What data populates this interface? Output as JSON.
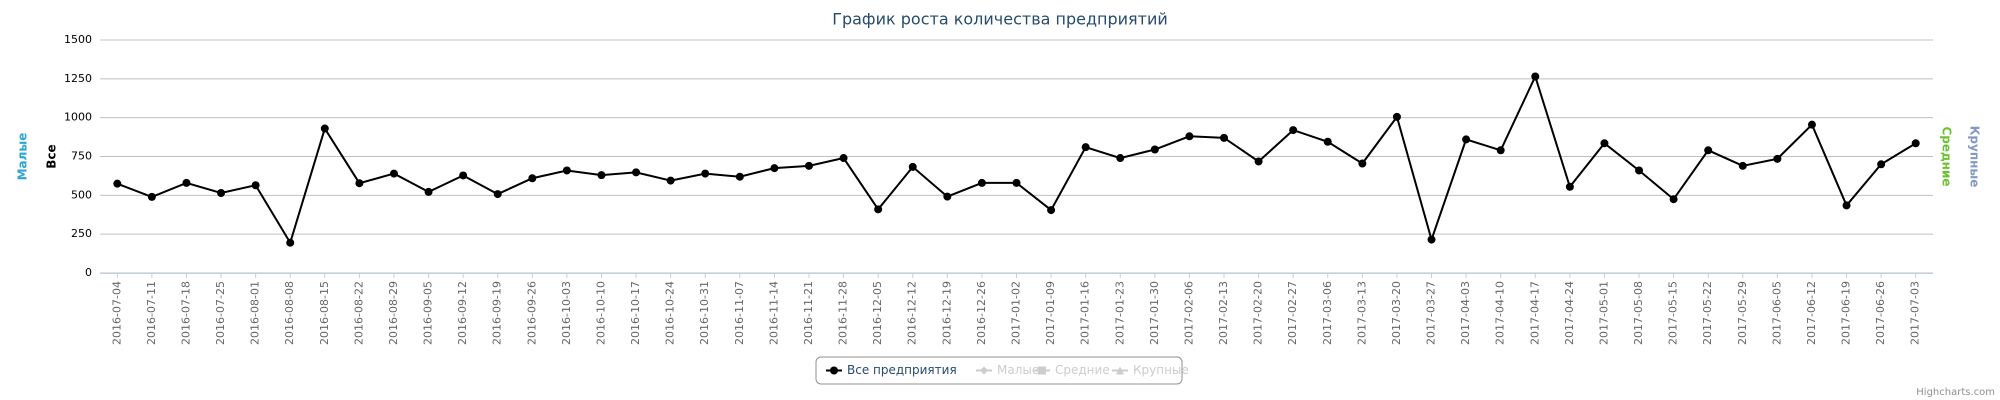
{
  "chart_data": {
    "type": "line",
    "title": "График роста количества предприятий",
    "categories": [
      "2016-07-04",
      "2016-07-11",
      "2016-07-18",
      "2016-07-25",
      "2016-08-01",
      "2016-08-08",
      "2016-08-15",
      "2016-08-22",
      "2016-08-29",
      "2016-09-05",
      "2016-09-12",
      "2016-09-19",
      "2016-09-26",
      "2016-10-03",
      "2016-10-10",
      "2016-10-17",
      "2016-10-24",
      "2016-10-31",
      "2016-11-07",
      "2016-11-14",
      "2016-11-21",
      "2016-11-28",
      "2016-12-05",
      "2016-12-12",
      "2016-12-19",
      "2016-12-26",
      "2017-01-02",
      "2017-01-09",
      "2017-01-16",
      "2017-01-23",
      "2017-01-30",
      "2017-02-06",
      "2017-02-13",
      "2017-02-20",
      "2017-02-27",
      "2017-03-06",
      "2017-03-13",
      "2017-03-20",
      "2017-03-27",
      "2017-04-03",
      "2017-04-10",
      "2017-04-17",
      "2017-04-24",
      "2017-05-01",
      "2017-05-08",
      "2017-05-15",
      "2017-05-22",
      "2017-05-29",
      "2017-06-05",
      "2017-06-12",
      "2017-06-19",
      "2017-06-26",
      "2017-07-03"
    ],
    "series": [
      {
        "name": "Все предприятия",
        "color": "#000000",
        "visible": true,
        "values": [
          575,
          490,
          580,
          515,
          565,
          195,
          930,
          578,
          640,
          522,
          628,
          508,
          610,
          660,
          630,
          648,
          595,
          640,
          620,
          675,
          690,
          740,
          410,
          683,
          492,
          580,
          580,
          405,
          810,
          740,
          795,
          880,
          870,
          718,
          920,
          845,
          705,
          1005,
          215,
          860,
          790,
          1265,
          555,
          835,
          660,
          475,
          790,
          690,
          735,
          955,
          435,
          700,
          835
        ]
      },
      {
        "name": "Малые",
        "color": "#2ba6d6",
        "visible": false
      },
      {
        "name": "Средние",
        "color": "#6cc12f",
        "visible": false
      },
      {
        "name": "Крупные",
        "color": "#8497c9",
        "visible": false
      }
    ],
    "y_axis_titles": [
      {
        "text": "Малые",
        "color": "#2ba6d6"
      },
      {
        "text": "Все",
        "color": "#000000"
      }
    ],
    "y2_axis_titles": [
      {
        "text": "Средние",
        "color": "#6cc12f"
      },
      {
        "text": "Крупные",
        "color": "#8497c9"
      }
    ],
    "ylim": [
      0,
      1500
    ],
    "yticks": [
      0,
      250,
      500,
      750,
      1000,
      1250,
      1500
    ],
    "grid": true,
    "credits": "Highcharts.com"
  }
}
